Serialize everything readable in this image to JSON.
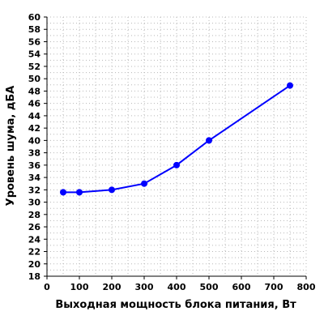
{
  "chart_data": {
    "type": "line",
    "title": "",
    "xlabel": "Выходная мощность блока питания, Вт",
    "ylabel": "Уровень шума, дБА",
    "xlim": [
      0,
      800
    ],
    "ylim": [
      18,
      60
    ],
    "x_ticks": [
      0,
      100,
      200,
      300,
      400,
      500,
      600,
      700,
      800
    ],
    "y_ticks": [
      18,
      20,
      22,
      24,
      26,
      28,
      30,
      32,
      34,
      36,
      38,
      40,
      42,
      44,
      46,
      48,
      50,
      52,
      54,
      56,
      58,
      60
    ],
    "grid": true,
    "legend": false,
    "series": [
      {
        "color": "#0000ff",
        "x": [
          50,
          100,
          200,
          300,
          400,
          500,
          750
        ],
        "y": [
          31.6,
          31.6,
          32.0,
          33.0,
          36.0,
          40.0,
          48.9
        ]
      }
    ]
  }
}
